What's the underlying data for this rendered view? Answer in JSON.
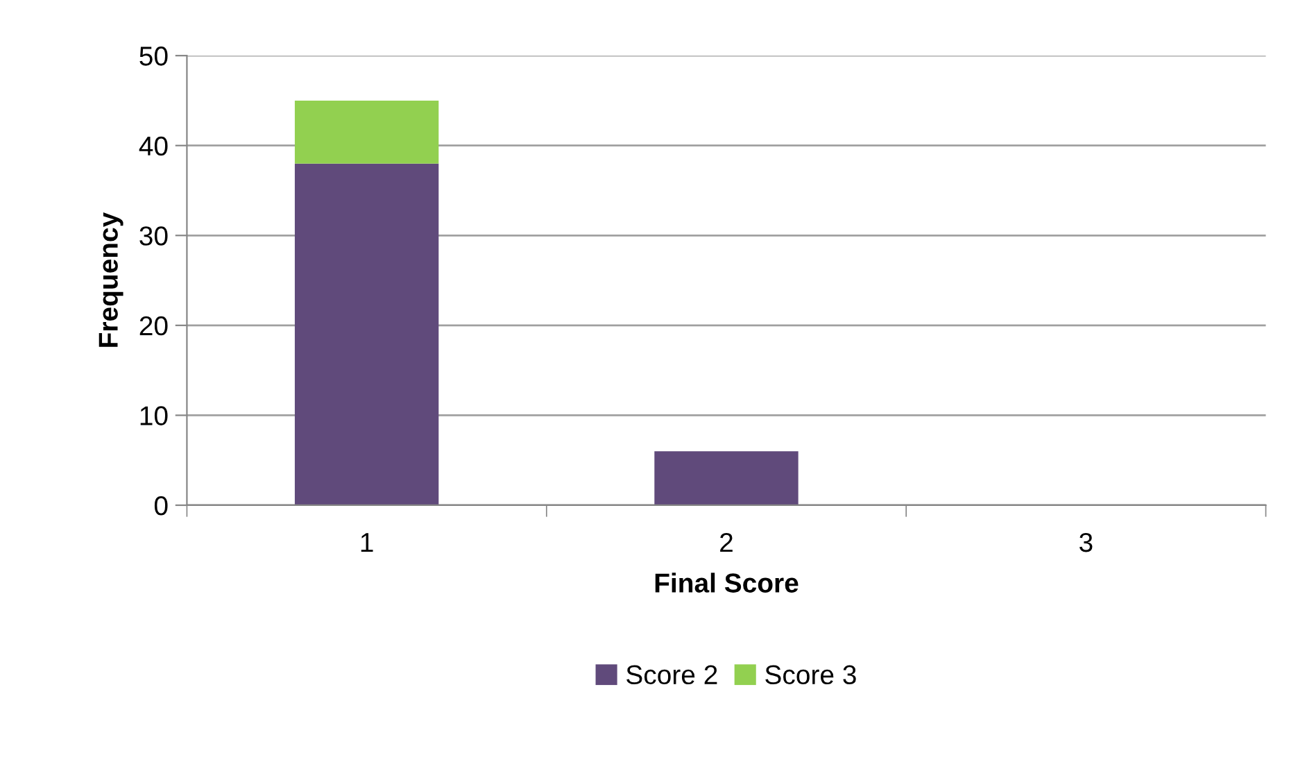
{
  "chart_data": {
    "type": "bar",
    "stacked": true,
    "xlabel": "Final Score",
    "ylabel": "Frequency",
    "categories": [
      "1",
      "2",
      "3"
    ],
    "series": [
      {
        "name": "Score 2",
        "color": "#604a7b",
        "values": [
          38,
          6,
          0
        ]
      },
      {
        "name": "Score 3",
        "color": "#92d050",
        "values": [
          7,
          0,
          0
        ]
      }
    ],
    "ylim": [
      0,
      50
    ],
    "yticks": [
      0,
      10,
      20,
      30,
      40,
      50
    ],
    "grid": "y",
    "legend": "bottom"
  }
}
